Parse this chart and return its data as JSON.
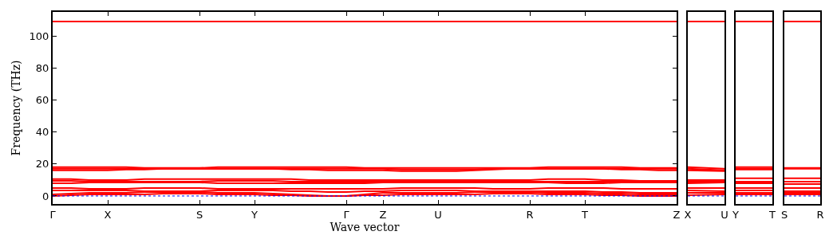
{
  "chart_data": [
    {
      "type": "line",
      "xlabel": "Wave vector",
      "ylabel": "Frequency (THz)",
      "categories": [
        "Γ",
        null,
        null,
        "X",
        null,
        null,
        null,
        null,
        "S",
        null,
        null,
        "Y",
        null,
        null,
        null,
        null,
        "Γ",
        null,
        "Z",
        null,
        null,
        "U",
        null,
        null,
        null,
        null,
        "R",
        null,
        null,
        "T",
        null,
        null,
        null,
        null,
        "Z"
      ],
      "ylim": [
        -5,
        115
      ],
      "yticks": [
        0,
        20,
        40,
        60,
        80,
        100
      ],
      "line_style": "solid",
      "marker": "none",
      "ref_lines": [
        {
          "axis": "y",
          "value": 0,
          "color": "#0000ff",
          "line_style": "dotted"
        }
      ],
      "series": [
        {
          "color": "#ff0000",
          "values": [
            109,
            109,
            109,
            109,
            109,
            109,
            109,
            109,
            109,
            109,
            109,
            109,
            109,
            109,
            109,
            109,
            109,
            109,
            109,
            109,
            109,
            109,
            109,
            109,
            109,
            109,
            109,
            109,
            109,
            109,
            109,
            109,
            109,
            109,
            109
          ]
        },
        {
          "color": "#ff0000",
          "values": [
            18,
            18,
            18,
            18,
            18,
            17.5,
            17.5,
            17.5,
            17.5,
            18,
            18,
            18,
            18,
            18,
            18,
            18,
            18,
            17.5,
            17.5,
            17.5,
            17.5,
            17.5,
            17.5,
            17.5,
            17.5,
            17.5,
            17.5,
            18,
            18,
            18,
            18,
            18,
            17.5,
            17.5,
            17.5
          ]
        },
        {
          "color": "#ff0000",
          "values": [
            17,
            17,
            17,
            17,
            17,
            17,
            17,
            17,
            17,
            17,
            17,
            17,
            17,
            17,
            17,
            17,
            17,
            17,
            17,
            16.5,
            16.5,
            16.5,
            16.5,
            16.5,
            17,
            17,
            17,
            17,
            17,
            17,
            17,
            17,
            17,
            17,
            17
          ]
        },
        {
          "color": "#ff0000",
          "values": [
            16,
            16,
            16,
            16,
            16.5,
            16.5,
            17,
            17,
            17,
            17,
            17,
            17,
            17,
            16.5,
            16.5,
            16,
            16,
            16,
            16,
            15.5,
            15.5,
            15.5,
            15.5,
            16,
            16.5,
            17,
            17,
            17,
            17,
            17,
            17,
            16.5,
            16.5,
            16,
            16
          ]
        },
        {
          "color": "#ff0000",
          "values": [
            10.5,
            10.5,
            10,
            10,
            10,
            10.5,
            10.5,
            10.5,
            10.5,
            10.5,
            10.5,
            10.5,
            10.5,
            10.5,
            10,
            10,
            10,
            10,
            10,
            10,
            10,
            10,
            10,
            10,
            10,
            10,
            10,
            10.5,
            10.5,
            10.5,
            10,
            10,
            9.5,
            9.5,
            9.5
          ]
        },
        {
          "color": "#ff0000",
          "values": [
            9.5,
            9.5,
            9,
            9,
            9,
            9,
            9,
            9,
            9,
            9.5,
            9.5,
            9.5,
            9.5,
            9,
            9,
            9,
            9,
            9,
            9,
            9,
            9,
            9,
            9,
            9,
            9,
            9,
            9,
            9,
            9,
            9,
            9,
            9,
            9,
            9,
            9
          ]
        },
        {
          "color": "#ff0000",
          "values": [
            8,
            8,
            8.5,
            8.5,
            8.5,
            8.5,
            8.5,
            8.5,
            8.5,
            8,
            8,
            8,
            8,
            8,
            8,
            8,
            8,
            8,
            8.5,
            8.5,
            8.5,
            8.5,
            8.5,
            8.5,
            8.5,
            8.5,
            8.5,
            8.5,
            8,
            8,
            8,
            8.5,
            8.5,
            8.5,
            8.5
          ]
        },
        {
          "color": "#ff0000",
          "values": [
            5,
            5,
            4.5,
            4.5,
            4.5,
            5,
            5,
            5,
            5,
            4.5,
            4.5,
            4.5,
            4.5,
            4.5,
            4.5,
            4.5,
            4.5,
            4.5,
            4.5,
            5,
            5,
            5,
            5,
            5,
            4.5,
            4.5,
            4.5,
            5,
            5,
            5,
            5,
            4.5,
            4.5,
            4.5,
            4.5
          ]
        },
        {
          "color": "#ff0000",
          "values": [
            3.5,
            3.5,
            3.5,
            3.5,
            3.5,
            3,
            3,
            3,
            3,
            3.5,
            3.5,
            3.5,
            3.5,
            3,
            3,
            2.5,
            2.5,
            3,
            3,
            3.5,
            3.5,
            3.5,
            3.5,
            3,
            3,
            3,
            3,
            3,
            3,
            3,
            2.5,
            2.5,
            2,
            2,
            2
          ]
        },
        {
          "color": "#ff0000",
          "values": [
            1,
            1.5,
            2,
            2,
            2,
            2.5,
            2.5,
            2.5,
            2.5,
            2,
            2,
            2,
            1.5,
            1,
            0.5,
            0,
            0,
            1,
            2,
            2,
            2,
            2,
            2,
            2.5,
            2.5,
            2.5,
            2.5,
            2,
            2,
            2,
            1.5,
            1.5,
            1,
            1,
            1
          ]
        },
        {
          "color": "#ff0000",
          "values": [
            0,
            0.5,
            1,
            1,
            1,
            1,
            1.5,
            1.5,
            1.5,
            1,
            1,
            1,
            0.5,
            0.5,
            0,
            0,
            0,
            0.5,
            0.5,
            1,
            1,
            1,
            1,
            1,
            1.5,
            1.5,
            1.5,
            1,
            1,
            1,
            0.5,
            0.5,
            0,
            0,
            0
          ]
        }
      ]
    },
    {
      "type": "line",
      "categories": [
        "X",
        "U"
      ],
      "ylim": [
        -5,
        115
      ],
      "tick_labels": "x",
      "line_style": "solid",
      "marker": "none",
      "ref_lines": [
        {
          "axis": "y",
          "value": 0,
          "color": "#0000ff",
          "line_style": "dotted"
        }
      ],
      "series": [
        {
          "color": "#ff0000",
          "values": [
            109,
            109
          ]
        },
        {
          "color": "#ff0000",
          "values": [
            18,
            17
          ]
        },
        {
          "color": "#ff0000",
          "values": [
            17,
            16
          ]
        },
        {
          "color": "#ff0000",
          "values": [
            16,
            15.5
          ]
        },
        {
          "color": "#ff0000",
          "values": [
            10,
            10
          ]
        },
        {
          "color": "#ff0000",
          "values": [
            9,
            9
          ]
        },
        {
          "color": "#ff0000",
          "values": [
            8,
            8.5
          ]
        },
        {
          "color": "#ff0000",
          "values": [
            5,
            5
          ]
        },
        {
          "color": "#ff0000",
          "values": [
            3.5,
            3
          ]
        },
        {
          "color": "#ff0000",
          "values": [
            2,
            2
          ]
        },
        {
          "color": "#ff0000",
          "values": [
            0.5,
            1
          ]
        }
      ]
    },
    {
      "type": "line",
      "categories": [
        "Y",
        "T"
      ],
      "ylim": [
        -5,
        115
      ],
      "tick_labels": "x",
      "line_style": "solid",
      "marker": "none",
      "ref_lines": [
        {
          "axis": "y",
          "value": 0,
          "color": "#0000ff",
          "line_style": "dotted"
        }
      ],
      "series": [
        {
          "color": "#ff0000",
          "values": [
            109,
            109
          ]
        },
        {
          "color": "#ff0000",
          "values": [
            18,
            18
          ]
        },
        {
          "color": "#ff0000",
          "values": [
            17,
            17
          ]
        },
        {
          "color": "#ff0000",
          "values": [
            16.5,
            16.5
          ]
        },
        {
          "color": "#ff0000",
          "values": [
            11,
            11
          ]
        },
        {
          "color": "#ff0000",
          "values": [
            9,
            9
          ]
        },
        {
          "color": "#ff0000",
          "values": [
            8,
            8
          ]
        },
        {
          "color": "#ff0000",
          "values": [
            5,
            5
          ]
        },
        {
          "color": "#ff0000",
          "values": [
            3.5,
            3.5
          ]
        },
        {
          "color": "#ff0000",
          "values": [
            2,
            2
          ]
        },
        {
          "color": "#ff0000",
          "values": [
            1,
            1
          ]
        }
      ]
    },
    {
      "type": "line",
      "categories": [
        "S",
        "R"
      ],
      "ylim": [
        -5,
        115
      ],
      "tick_labels": "x",
      "line_style": "solid",
      "marker": "none",
      "ref_lines": [
        {
          "axis": "y",
          "value": 0,
          "color": "#0000ff",
          "line_style": "dotted"
        }
      ],
      "series": [
        {
          "color": "#ff0000",
          "values": [
            109,
            109
          ]
        },
        {
          "color": "#ff0000",
          "values": [
            17.5,
            17.5
          ]
        },
        {
          "color": "#ff0000",
          "values": [
            17,
            17
          ]
        },
        {
          "color": "#ff0000",
          "values": [
            11,
            11
          ]
        },
        {
          "color": "#ff0000",
          "values": [
            9,
            9
          ]
        },
        {
          "color": "#ff0000",
          "values": [
            7.5,
            7.5
          ]
        },
        {
          "color": "#ff0000",
          "values": [
            5,
            5
          ]
        },
        {
          "color": "#ff0000",
          "values": [
            3,
            3
          ]
        },
        {
          "color": "#ff0000",
          "values": [
            2,
            2
          ]
        },
        {
          "color": "#ff0000",
          "values": [
            1,
            1
          ]
        }
      ]
    }
  ]
}
